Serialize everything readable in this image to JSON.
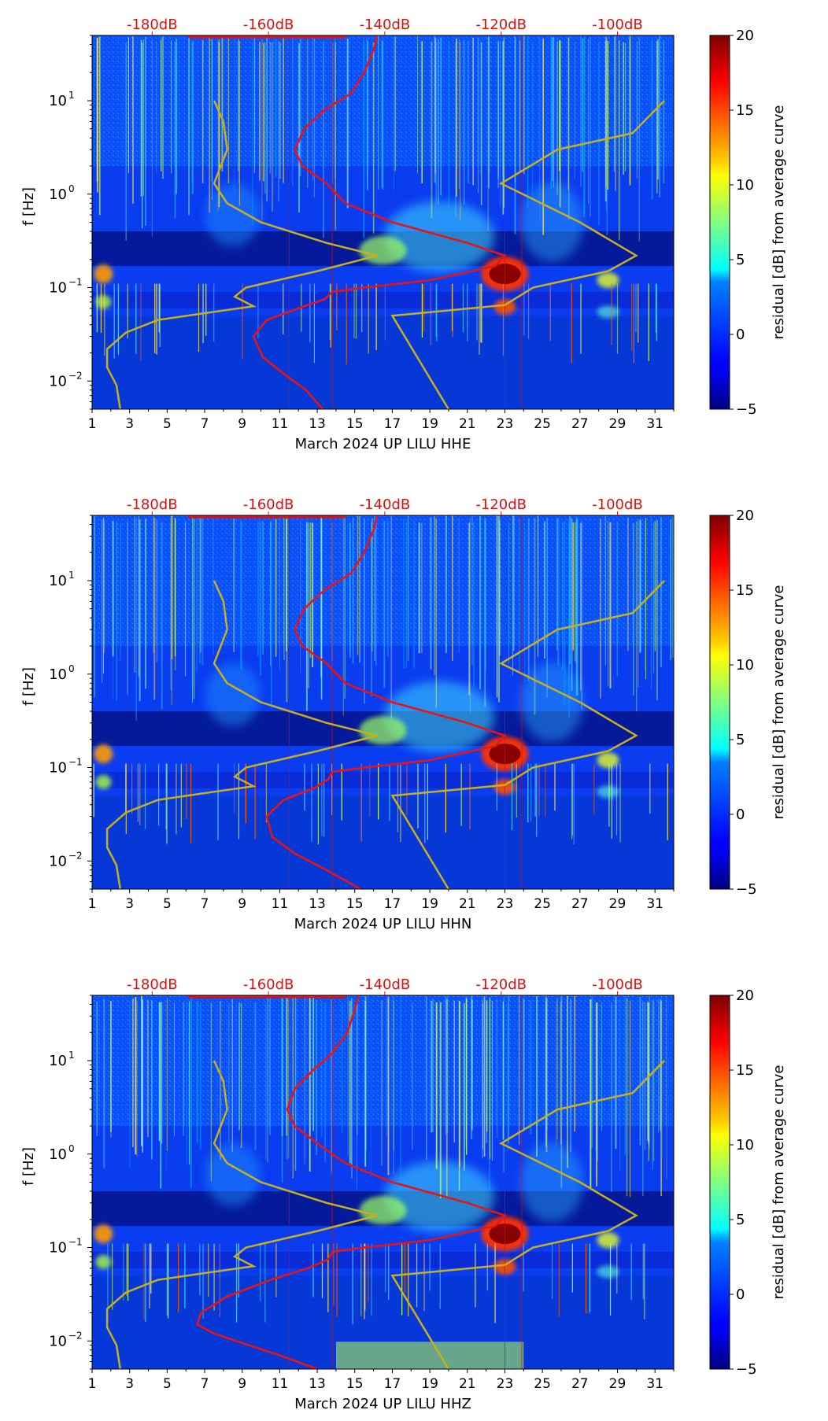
{
  "chart_data": [
    {
      "type": "heatmap",
      "channel": "HHE",
      "xlabel": "March 2024 UP LILU  HHE",
      "ylabel": "f [Hz]",
      "x_ticks": [
        1,
        3,
        5,
        7,
        9,
        11,
        13,
        15,
        17,
        19,
        21,
        23,
        25,
        27,
        29,
        31
      ],
      "xlim": [
        1,
        32
      ],
      "ylim": [
        0.005,
        50
      ],
      "y_ticks": [
        {
          "value": 0.01,
          "base": "10",
          "exp": "−2"
        },
        {
          "value": 0.1,
          "base": "10",
          "exp": "−1"
        },
        {
          "value": 1,
          "base": "10",
          "exp": "0"
        },
        {
          "value": 10,
          "base": "10",
          "exp": "1"
        }
      ],
      "db_ticks": [
        "-180dB",
        "-160dB",
        "-140dB",
        "-120dB",
        "-100dB"
      ],
      "db_tick_days": [
        4.2,
        10.4,
        16.6,
        22.8,
        29.0
      ],
      "colorbar": {
        "label": "residual [dB] from average curve",
        "min": -5,
        "max": 20,
        "ticks": [
          "−5",
          "0",
          "5",
          "10",
          "15",
          "20"
        ],
        "tick_values": [
          -5,
          0,
          5,
          10,
          15,
          20
        ]
      },
      "red_curve": [
        [
          13.3,
          0.005
        ],
        [
          12.4,
          0.008
        ],
        [
          11.2,
          0.012
        ],
        [
          10.1,
          0.018
        ],
        [
          9.6,
          0.03
        ],
        [
          10.3,
          0.045
        ],
        [
          12.0,
          0.06
        ],
        [
          13.4,
          0.075
        ],
        [
          13.8,
          0.09
        ],
        [
          15.5,
          0.1
        ],
        [
          19.0,
          0.12
        ],
        [
          22.5,
          0.17
        ],
        [
          23.0,
          0.22
        ],
        [
          21.0,
          0.3
        ],
        [
          17.0,
          0.5
        ],
        [
          14.5,
          0.8
        ],
        [
          13.5,
          1.3
        ],
        [
          12.2,
          2.0
        ],
        [
          11.8,
          3.0
        ],
        [
          12.3,
          5.0
        ],
        [
          13.4,
          8.0
        ],
        [
          14.8,
          12.0
        ],
        [
          15.5,
          20.0
        ],
        [
          16.0,
          35.0
        ],
        [
          16.2,
          50.0
        ]
      ],
      "yellow_curves": [
        [
          [
            2.5,
            0.005
          ],
          [
            2.3,
            0.009
          ],
          [
            1.8,
            0.014
          ],
          [
            1.8,
            0.022
          ],
          [
            2.8,
            0.033
          ],
          [
            4.5,
            0.045
          ],
          [
            7.5,
            0.055
          ],
          [
            9.6,
            0.063
          ],
          [
            8.6,
            0.08
          ],
          [
            9.2,
            0.1
          ],
          [
            13.0,
            0.15
          ],
          [
            16.2,
            0.22
          ],
          [
            13.5,
            0.3
          ],
          [
            10.0,
            0.5
          ],
          [
            8.2,
            0.8
          ],
          [
            7.5,
            1.3
          ],
          [
            8.2,
            3.0
          ],
          [
            8.0,
            6.0
          ],
          [
            7.5,
            10.0
          ]
        ],
        [
          [
            20.0,
            0.005
          ],
          [
            17.0,
            0.05
          ],
          [
            23.0,
            0.065
          ],
          [
            24.5,
            0.1
          ],
          [
            28.5,
            0.15
          ],
          [
            30.0,
            0.22
          ],
          [
            27.0,
            0.5
          ],
          [
            22.8,
            1.3
          ],
          [
            25.8,
            3.0
          ],
          [
            29.8,
            4.5
          ],
          [
            31.5,
            10.0
          ]
        ]
      ]
    },
    {
      "type": "heatmap",
      "channel": "HHN",
      "xlabel": "March 2024 UP LILU  HHN",
      "ylabel": "f [Hz]",
      "x_ticks": [
        1,
        3,
        5,
        7,
        9,
        11,
        13,
        15,
        17,
        19,
        21,
        23,
        25,
        27,
        29,
        31
      ],
      "xlim": [
        1,
        32
      ],
      "ylim": [
        0.005,
        50
      ],
      "y_ticks": [
        {
          "value": 0.01,
          "base": "10",
          "exp": "−2"
        },
        {
          "value": 0.1,
          "base": "10",
          "exp": "−1"
        },
        {
          "value": 1,
          "base": "10",
          "exp": "0"
        },
        {
          "value": 10,
          "base": "10",
          "exp": "1"
        }
      ],
      "db_ticks": [
        "-180dB",
        "-160dB",
        "-140dB",
        "-120dB",
        "-100dB"
      ],
      "db_tick_days": [
        4.2,
        10.4,
        16.6,
        22.8,
        29.0
      ],
      "colorbar": {
        "label": "residual [dB] from average curve",
        "min": -5,
        "max": 20,
        "ticks": [
          "−5",
          "0",
          "5",
          "10",
          "15",
          "20"
        ],
        "tick_values": [
          -5,
          0,
          5,
          10,
          15,
          20
        ]
      },
      "red_curve": [
        [
          15.3,
          0.005
        ],
        [
          13.5,
          0.008
        ],
        [
          11.8,
          0.012
        ],
        [
          10.6,
          0.018
        ],
        [
          10.3,
          0.03
        ],
        [
          11.2,
          0.045
        ],
        [
          12.8,
          0.06
        ],
        [
          13.6,
          0.075
        ],
        [
          13.8,
          0.09
        ],
        [
          15.5,
          0.1
        ],
        [
          19.0,
          0.12
        ],
        [
          22.5,
          0.17
        ],
        [
          23.0,
          0.22
        ],
        [
          21.0,
          0.3
        ],
        [
          17.0,
          0.5
        ],
        [
          14.5,
          0.8
        ],
        [
          13.5,
          1.3
        ],
        [
          12.2,
          2.0
        ],
        [
          11.8,
          3.0
        ],
        [
          12.3,
          5.0
        ],
        [
          13.4,
          8.0
        ],
        [
          14.8,
          12.0
        ],
        [
          15.5,
          20.0
        ],
        [
          16.0,
          35.0
        ],
        [
          16.2,
          50.0
        ]
      ],
      "yellow_curves": [
        [
          [
            2.5,
            0.005
          ],
          [
            2.3,
            0.009
          ],
          [
            1.8,
            0.014
          ],
          [
            1.8,
            0.022
          ],
          [
            2.8,
            0.033
          ],
          [
            4.5,
            0.045
          ],
          [
            7.5,
            0.055
          ],
          [
            9.6,
            0.063
          ],
          [
            8.6,
            0.08
          ],
          [
            9.2,
            0.1
          ],
          [
            13.0,
            0.15
          ],
          [
            16.2,
            0.22
          ],
          [
            13.5,
            0.3
          ],
          [
            10.0,
            0.5
          ],
          [
            8.2,
            0.8
          ],
          [
            7.5,
            1.3
          ],
          [
            8.2,
            3.0
          ],
          [
            8.0,
            6.0
          ],
          [
            7.5,
            10.0
          ]
        ],
        [
          [
            20.0,
            0.005
          ],
          [
            17.0,
            0.05
          ],
          [
            23.0,
            0.065
          ],
          [
            24.5,
            0.1
          ],
          [
            28.5,
            0.15
          ],
          [
            30.0,
            0.22
          ],
          [
            27.0,
            0.5
          ],
          [
            22.8,
            1.3
          ],
          [
            25.8,
            3.0
          ],
          [
            29.8,
            4.5
          ],
          [
            31.5,
            10.0
          ]
        ]
      ]
    },
    {
      "type": "heatmap",
      "channel": "HHZ",
      "xlabel": "March 2024 UP LILU  HHZ",
      "ylabel": "f [Hz]",
      "x_ticks": [
        1,
        3,
        5,
        7,
        9,
        11,
        13,
        15,
        17,
        19,
        21,
        23,
        25,
        27,
        29,
        31
      ],
      "xlim": [
        1,
        32
      ],
      "ylim": [
        0.005,
        50
      ],
      "y_ticks": [
        {
          "value": 0.01,
          "base": "10",
          "exp": "−2"
        },
        {
          "value": 0.1,
          "base": "10",
          "exp": "−1"
        },
        {
          "value": 1,
          "base": "10",
          "exp": "0"
        },
        {
          "value": 10,
          "base": "10",
          "exp": "1"
        }
      ],
      "db_ticks": [
        "-180dB",
        "-160dB",
        "-140dB",
        "-120dB",
        "-100dB"
      ],
      "db_tick_days": [
        4.2,
        10.4,
        16.6,
        22.8,
        29.0
      ],
      "colorbar": {
        "label": "residual [dB] from average curve",
        "min": -5,
        "max": 20,
        "ticks": [
          "−5",
          "0",
          "5",
          "10",
          "15",
          "20"
        ],
        "tick_values": [
          -5,
          0,
          5,
          10,
          15,
          20
        ]
      },
      "red_curve": [
        [
          13.0,
          0.005
        ],
        [
          11.0,
          0.007
        ],
        [
          9.0,
          0.0095
        ],
        [
          7.5,
          0.012
        ],
        [
          6.6,
          0.015
        ],
        [
          6.8,
          0.02
        ],
        [
          8.2,
          0.03
        ],
        [
          10.5,
          0.045
        ],
        [
          12.5,
          0.06
        ],
        [
          13.6,
          0.075
        ],
        [
          13.8,
          0.09
        ],
        [
          15.5,
          0.1
        ],
        [
          19.0,
          0.12
        ],
        [
          22.5,
          0.17
        ],
        [
          23.0,
          0.22
        ],
        [
          21.0,
          0.3
        ],
        [
          17.0,
          0.5
        ],
        [
          14.5,
          0.8
        ],
        [
          13.0,
          1.3
        ],
        [
          11.8,
          2.0
        ],
        [
          11.4,
          3.0
        ],
        [
          11.8,
          5.0
        ],
        [
          12.8,
          8.0
        ],
        [
          13.8,
          12.0
        ],
        [
          14.6,
          20.0
        ],
        [
          15.0,
          35.0
        ],
        [
          15.2,
          50.0
        ]
      ],
      "yellow_curves": [
        [
          [
            2.5,
            0.005
          ],
          [
            2.3,
            0.009
          ],
          [
            1.8,
            0.014
          ],
          [
            1.8,
            0.022
          ],
          [
            2.8,
            0.033
          ],
          [
            4.5,
            0.045
          ],
          [
            7.5,
            0.055
          ],
          [
            9.6,
            0.063
          ],
          [
            8.6,
            0.08
          ],
          [
            9.2,
            0.1
          ],
          [
            13.0,
            0.15
          ],
          [
            16.2,
            0.22
          ],
          [
            13.5,
            0.3
          ],
          [
            10.0,
            0.5
          ],
          [
            8.2,
            0.8
          ],
          [
            7.5,
            1.3
          ],
          [
            8.2,
            3.0
          ],
          [
            8.0,
            6.0
          ],
          [
            7.5,
            10.0
          ]
        ],
        [
          [
            20.0,
            0.005
          ],
          [
            17.0,
            0.05
          ],
          [
            23.0,
            0.065
          ],
          [
            24.5,
            0.1
          ],
          [
            28.5,
            0.15
          ],
          [
            30.0,
            0.22
          ],
          [
            27.0,
            0.5
          ],
          [
            22.8,
            1.3
          ],
          [
            25.8,
            3.0
          ],
          [
            29.8,
            4.5
          ],
          [
            31.5,
            10.0
          ]
        ]
      ]
    }
  ]
}
